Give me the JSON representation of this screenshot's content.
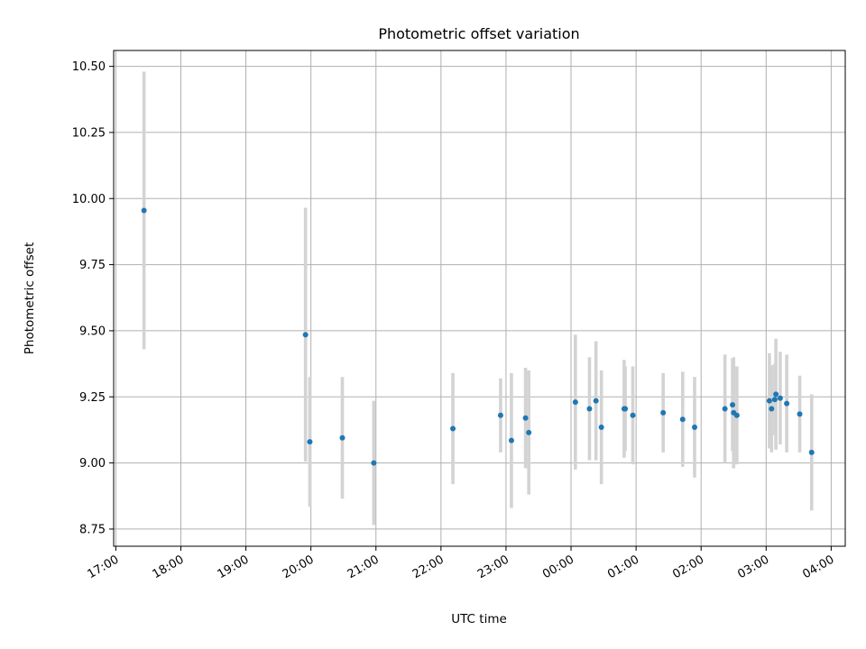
{
  "chart_data": {
    "type": "scatter",
    "title": "Photometric offset variation",
    "xlabel": "UTC time",
    "ylabel": "Photometric offset",
    "grid": true,
    "xlim": [
      "16:58",
      "04:13"
    ],
    "ylim": [
      8.685,
      10.56
    ],
    "x_ticks": [
      "17:00",
      "18:00",
      "19:00",
      "20:00",
      "21:00",
      "22:00",
      "23:00",
      "00:00",
      "01:00",
      "02:00",
      "03:00",
      "04:00"
    ],
    "y_ticks": [
      8.75,
      9.0,
      9.25,
      9.5,
      9.75,
      10.0,
      10.25,
      10.5
    ],
    "y_tick_labels": [
      "8.75",
      "9.00",
      "9.25",
      "9.50",
      "9.75",
      "10.00",
      "10.25",
      "10.50"
    ],
    "colors": {
      "point": "#1f77b4",
      "errorbar": "#d3d3d3",
      "grid": "#b0b0b0"
    },
    "points": [
      {
        "x": "17:26",
        "y": 9.955,
        "err": 0.525
      },
      {
        "x": "19:55",
        "y": 9.485,
        "err": 0.48
      },
      {
        "x": "19:59",
        "y": 9.08,
        "err": 0.245
      },
      {
        "x": "20:29",
        "y": 9.095,
        "err": 0.23
      },
      {
        "x": "20:58",
        "y": 9.0,
        "err": 0.235
      },
      {
        "x": "22:11",
        "y": 9.13,
        "err": 0.21
      },
      {
        "x": "22:55",
        "y": 9.18,
        "err": 0.14
      },
      {
        "x": "23:05",
        "y": 9.085,
        "err": 0.255
      },
      {
        "x": "23:18",
        "y": 9.17,
        "err": 0.19
      },
      {
        "x": "23:21",
        "y": 9.115,
        "err": 0.235
      },
      {
        "x": "00:04",
        "y": 9.23,
        "err": 0.255
      },
      {
        "x": "00:17",
        "y": 9.205,
        "err": 0.195
      },
      {
        "x": "00:23",
        "y": 9.235,
        "err": 0.225
      },
      {
        "x": "00:28",
        "y": 9.135,
        "err": 0.215
      },
      {
        "x": "00:49",
        "y": 9.205,
        "err": 0.185
      },
      {
        "x": "00:50",
        "y": 9.205,
        "err": 0.16
      },
      {
        "x": "00:57",
        "y": 9.18,
        "err": 0.185
      },
      {
        "x": "01:25",
        "y": 9.19,
        "err": 0.15
      },
      {
        "x": "01:43",
        "y": 9.165,
        "err": 0.18
      },
      {
        "x": "01:54",
        "y": 9.135,
        "err": 0.19
      },
      {
        "x": "02:22",
        "y": 9.205,
        "err": 0.205
      },
      {
        "x": "02:29",
        "y": 9.22,
        "err": 0.175
      },
      {
        "x": "02:30",
        "y": 9.19,
        "err": 0.21
      },
      {
        "x": "02:33",
        "y": 9.18,
        "err": 0.185
      },
      {
        "x": "03:03",
        "y": 9.235,
        "err": 0.18
      },
      {
        "x": "03:05",
        "y": 9.205,
        "err": 0.165
      },
      {
        "x": "03:08",
        "y": 9.24,
        "err": 0.135
      },
      {
        "x": "03:09",
        "y": 9.26,
        "err": 0.21
      },
      {
        "x": "03:13",
        "y": 9.245,
        "err": 0.175
      },
      {
        "x": "03:19",
        "y": 9.225,
        "err": 0.185
      },
      {
        "x": "03:31",
        "y": 9.185,
        "err": 0.145
      },
      {
        "x": "03:42",
        "y": 9.04,
        "err": 0.22
      }
    ]
  }
}
